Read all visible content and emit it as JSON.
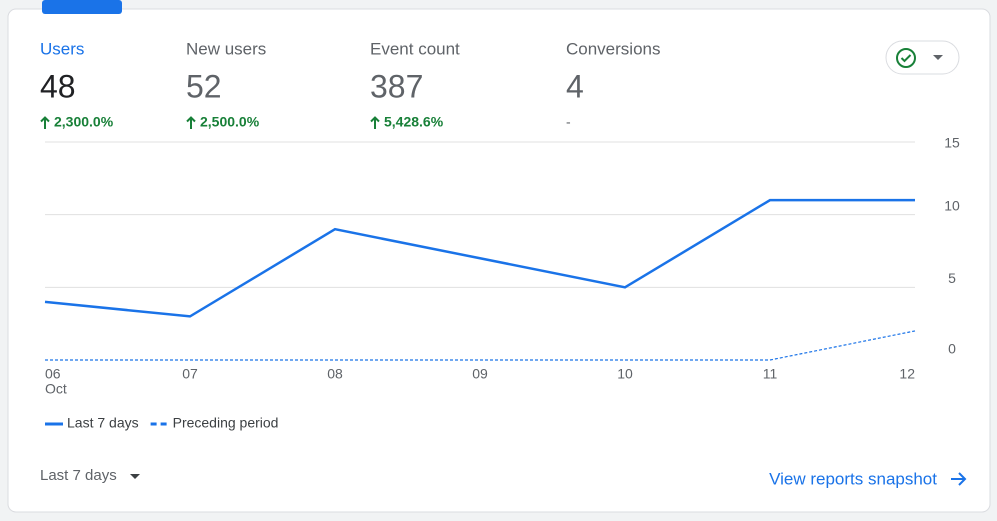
{
  "metrics": [
    {
      "label": "Users",
      "value": 48,
      "change": "2,300.0%"
    },
    {
      "label": "New users",
      "value": 52,
      "change": "2,500.0%"
    },
    {
      "label": "Event count",
      "value": 387,
      "change": "5,428.6%"
    },
    {
      "label": "Conversions",
      "value": 4,
      "change": "-"
    }
  ],
  "chart_data": {
    "type": "line",
    "categories": [
      "06",
      "07",
      "08",
      "09",
      "10",
      "11",
      "12"
    ],
    "month": "Oct",
    "series": [
      {
        "name": "Last 7 days",
        "color": "#1a73e8",
        "values": [
          4,
          3,
          9,
          7,
          5,
          11,
          11
        ]
      },
      {
        "name": "Preceding period",
        "color": "#1a73e8",
        "values": [
          0,
          0,
          0,
          0,
          0,
          0,
          2
        ]
      }
    ],
    "ylim": [
      0,
      15
    ],
    "yticks": [
      0,
      5,
      10,
      15
    ],
    "grid": true
  },
  "footer": {
    "range": "Last 7 days",
    "link": "View reports snapshot"
  }
}
